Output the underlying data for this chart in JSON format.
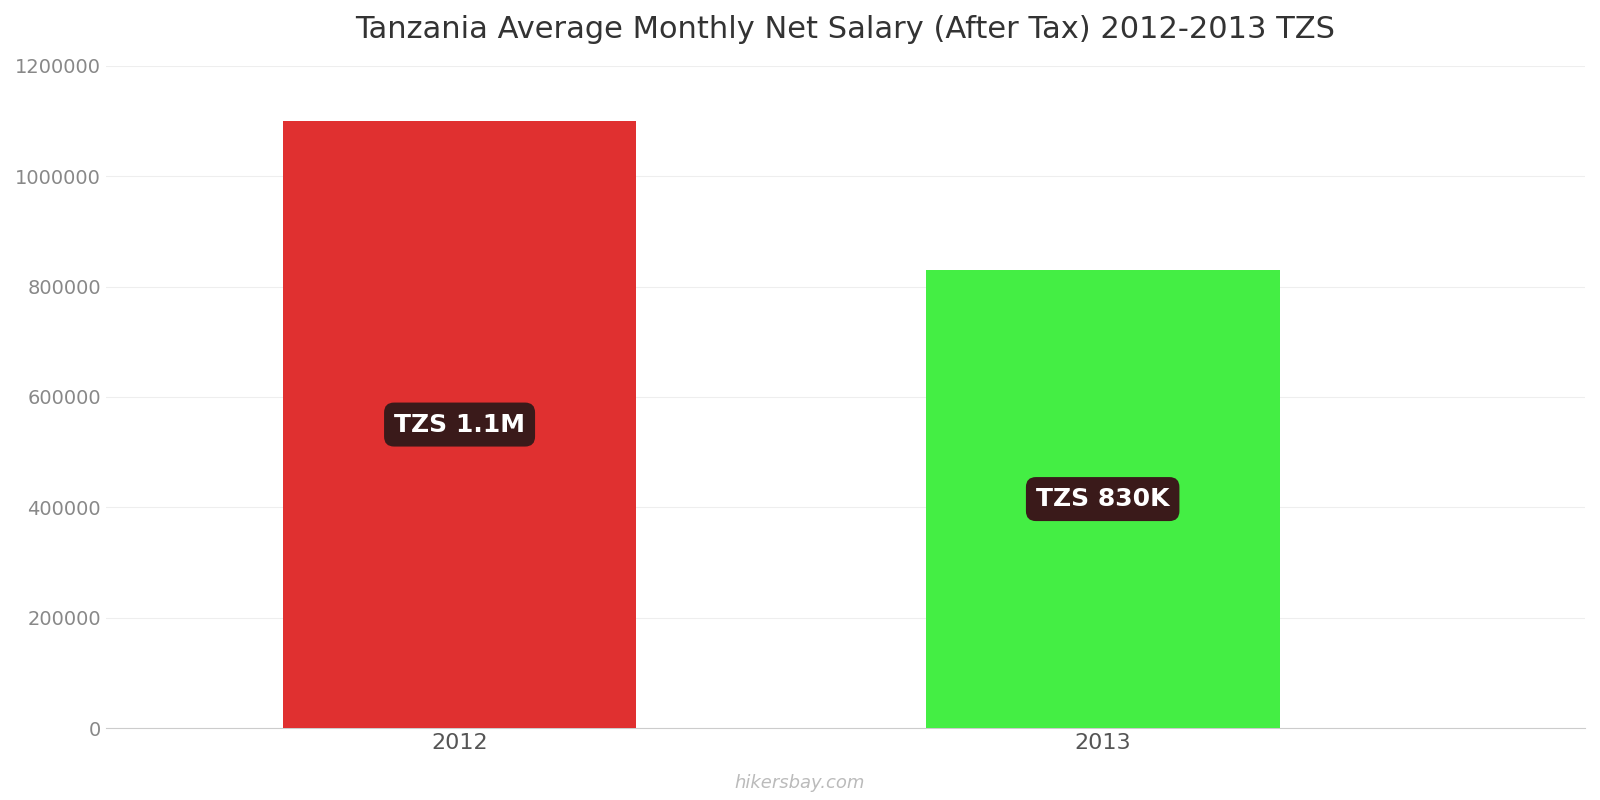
{
  "title": "Tanzania Average Monthly Net Salary (After Tax) 2012-2013 TZS",
  "categories": [
    "2012",
    "2013"
  ],
  "values": [
    1100000,
    830000
  ],
  "bar_colors": [
    "#e03030",
    "#44ee44"
  ],
  "label_texts": [
    "TZS 1.1M",
    "TZS 830K"
  ],
  "label_bg_color": "#3a1a1a",
  "label_text_color": "#ffffff",
  "ylim": [
    0,
    1200000
  ],
  "yticks": [
    0,
    200000,
    400000,
    600000,
    800000,
    1000000,
    1200000
  ],
  "ytick_labels": [
    "0",
    "200000",
    "400000",
    "600000",
    "800000",
    "1000000",
    "1200000"
  ],
  "background_color": "#ffffff",
  "grid_color": "#eeeeee",
  "title_fontsize": 22,
  "tick_fontsize": 14,
  "label_fontsize": 18,
  "watermark": "hikersbay.com",
  "bar_width": 0.55,
  "x_positions": [
    1,
    2
  ],
  "xlim": [
    0.45,
    2.75
  ]
}
